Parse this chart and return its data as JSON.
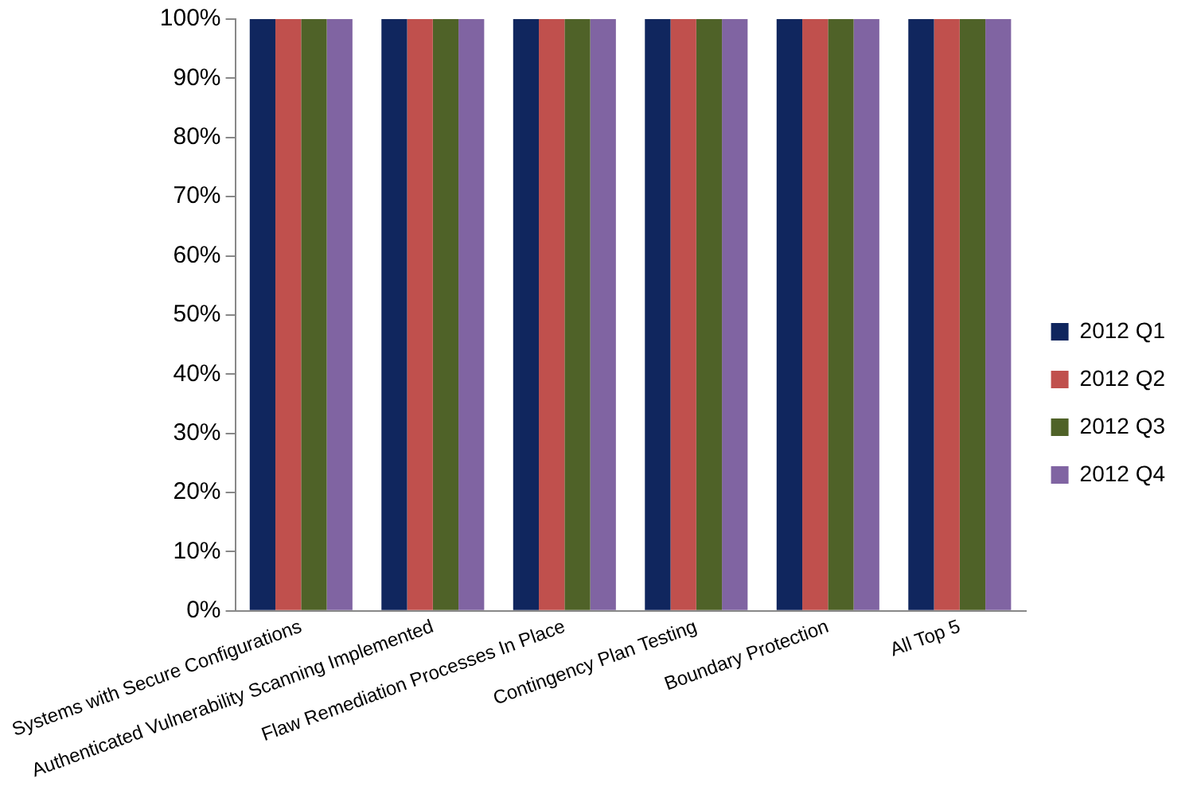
{
  "chart_data": {
    "type": "bar",
    "categories": [
      "Systems with Secure Configurations",
      "Authenticated Vulnerability Scanning Implemented",
      "Flaw Remediation Processes In Place",
      "Contingency Plan Testing",
      "Boundary Protection",
      "All Top 5"
    ],
    "series": [
      {
        "name": "2012 Q1",
        "color": "#10265e",
        "values": [
          100,
          100,
          100,
          100,
          100,
          100
        ]
      },
      {
        "name": "2012 Q2",
        "color": "#c0504d",
        "values": [
          100,
          100,
          100,
          100,
          100,
          100
        ]
      },
      {
        "name": "2012 Q3",
        "color": "#4f6228",
        "values": [
          100,
          100,
          100,
          100,
          100,
          100
        ]
      },
      {
        "name": "2012 Q4",
        "color": "#8064a2",
        "values": [
          100,
          100,
          100,
          100,
          100,
          100
        ]
      }
    ],
    "ylim": [
      0,
      100
    ],
    "yticks": [
      {
        "value": 0,
        "label": "0%"
      },
      {
        "value": 10,
        "label": "10%"
      },
      {
        "value": 20,
        "label": "20%"
      },
      {
        "value": 30,
        "label": "30%"
      },
      {
        "value": 40,
        "label": "40%"
      },
      {
        "value": 50,
        "label": "50%"
      },
      {
        "value": 60,
        "label": "60%"
      },
      {
        "value": 70,
        "label": "70%"
      },
      {
        "value": 80,
        "label": "80%"
      },
      {
        "value": 90,
        "label": "90%"
      },
      {
        "value": 100,
        "label": "100%"
      }
    ],
    "grid": false,
    "legend": "right"
  }
}
